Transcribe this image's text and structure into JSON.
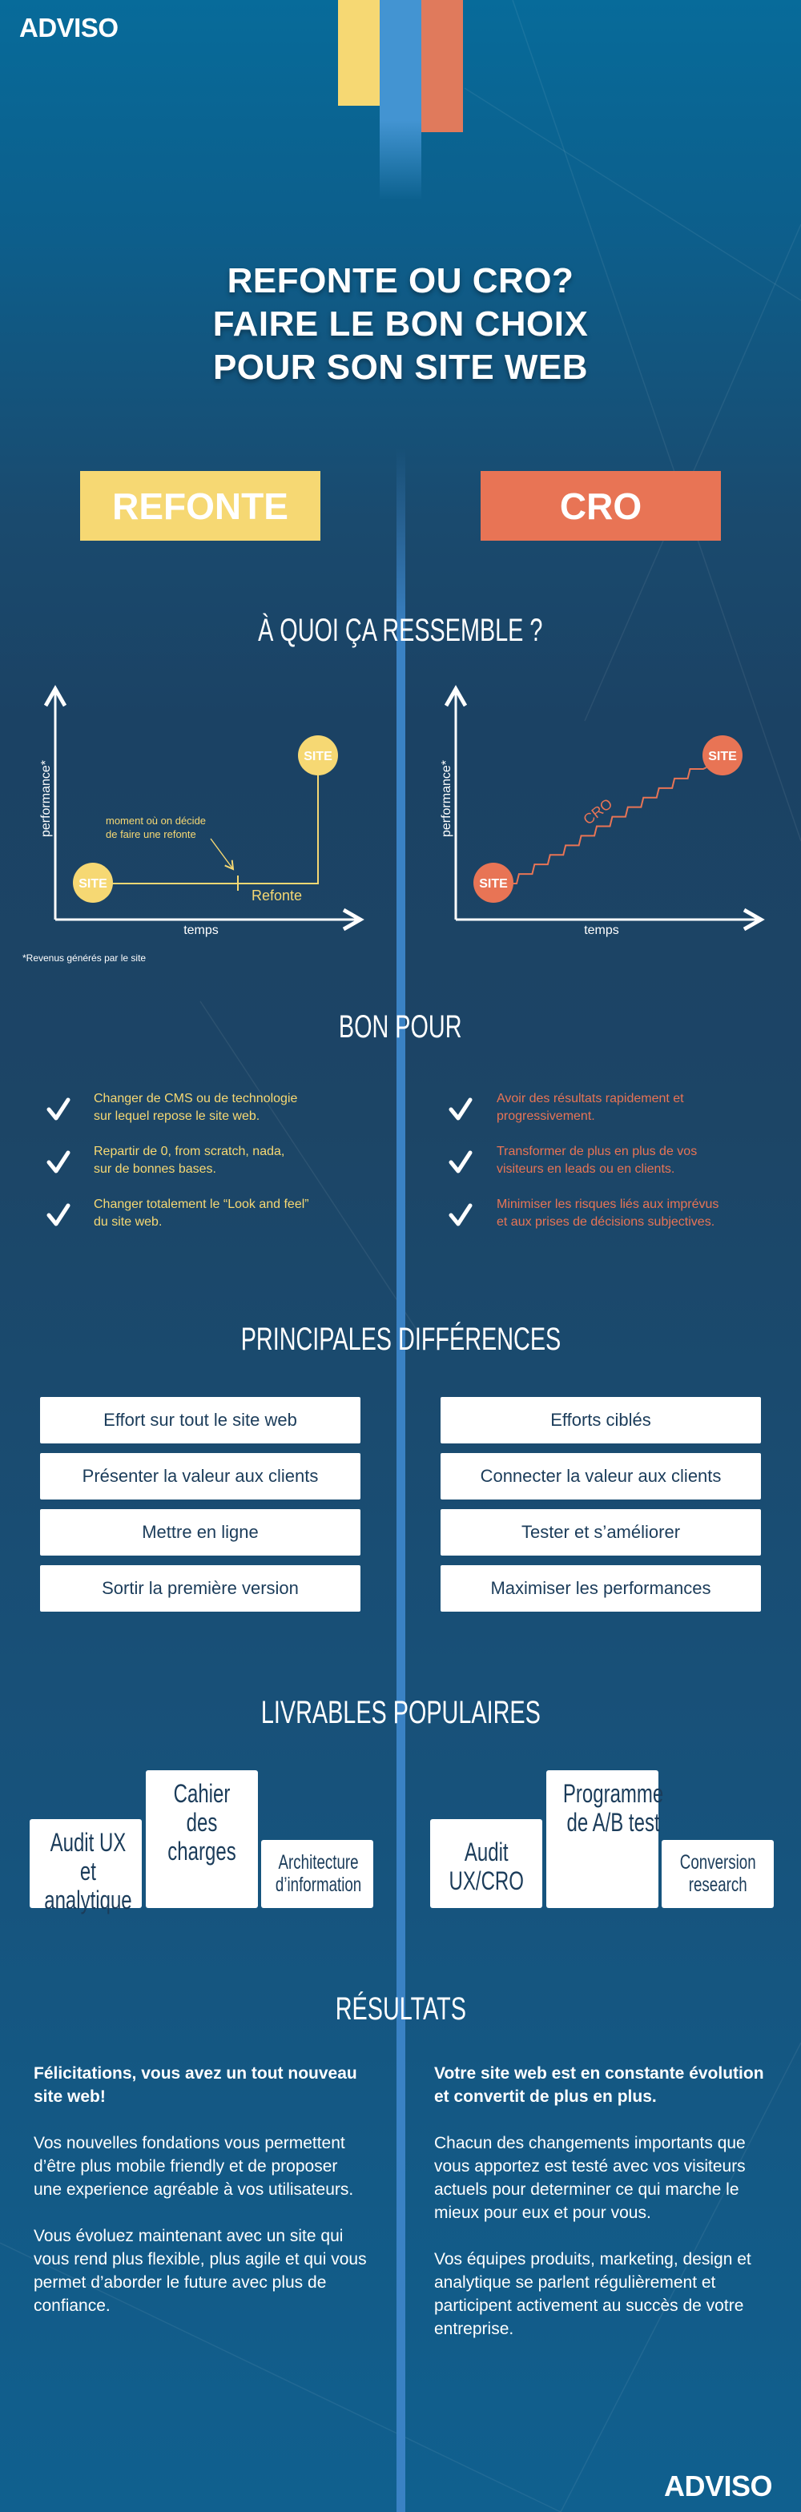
{
  "brand": {
    "logo": "ADVISO",
    "colors": {
      "yellow": "#f6d873",
      "orange": "#e87455",
      "blue": "#3a82c4",
      "navy": "#1b3c5a"
    }
  },
  "title": {
    "line1": "REFONTE OU CRO?",
    "line2": "FAIRE LE BON CHOIX",
    "line3": "POUR SON SITE WEB"
  },
  "columns": {
    "left": "REFONTE",
    "right": "CRO"
  },
  "section_look": {
    "heading": "À QUOI ÇA RESSEMBLE ?",
    "left_chart": {
      "ylabel": "performance*",
      "xlabel": "temps",
      "start": "SITE",
      "end": "SITE",
      "annotation_line1": "moment où on décide",
      "annotation_line2": "de faire une refonte",
      "phase": "Refonte"
    },
    "right_chart": {
      "ylabel": "performance*",
      "xlabel": "temps",
      "start": "SITE",
      "end": "SITE",
      "phase": "CRO"
    },
    "footnote": "*Revenus générés par le site"
  },
  "section_good": {
    "heading": "BON POUR",
    "left": [
      [
        "Changer de CMS ou de technologie",
        "sur lequel repose le site web."
      ],
      [
        "Repartir de 0, from scratch, nada,",
        "sur de bonnes bases."
      ],
      [
        "Changer totalement le “Look and feel”",
        "du site web."
      ]
    ],
    "right": [
      [
        "Avoir des résultats rapidement et",
        "progressivement."
      ],
      [
        "Transformer de plus en plus de vos",
        "visiteurs en leads ou en clients."
      ],
      [
        "Minimiser les risques liés aux imprévus",
        "et aux prises de décisions subjectives."
      ]
    ]
  },
  "section_diff": {
    "heading": "PRINCIPALES DIFFÉRENCES",
    "left": [
      "Effort sur tout le site web",
      "Présenter la valeur aux clients",
      "Mettre en ligne",
      "Sortir la première version"
    ],
    "right": [
      "Efforts ciblés",
      "Connecter la valeur aux clients",
      "Tester et s’améliorer",
      "Maximiser les performances"
    ]
  },
  "section_deliv": {
    "heading": "LIVRABLES POPULAIRES",
    "left": [
      "Audit UX et\nanalytique",
      "Cahier des\ncharges",
      "Architecture\nd’information"
    ],
    "right": [
      "Audit\nUX/CRO",
      "Programme\nde A/B test",
      "Conversion\nresearch"
    ]
  },
  "section_results": {
    "heading": "RÉSULTATS",
    "left": {
      "lead": "Félicitations, vous avez un tout nouveau site web!",
      "p1": "Vos nouvelles fondations vous permettent d’être plus mobile friendly et de proposer une experience agréable à vos utilisateurs.",
      "p2": "Vous évoluez maintenant avec un site qui vous rend plus flexible, plus agile et qui vous permet d’aborder le future avec plus de confiance."
    },
    "right": {
      "lead": "Votre site web est en constante évolution et convertit de plus en plus.",
      "p1": "Chacun des changements importants que vous apportez est testé avec vos visiteurs actuels pour determiner ce qui marche le mieux pour eux et pour vous.",
      "p2": "Vos équipes produits, marketing, design et analytique se parlent régulièrement et participent activement au succès de votre entreprise."
    }
  },
  "footer_logo": "ADVISO"
}
